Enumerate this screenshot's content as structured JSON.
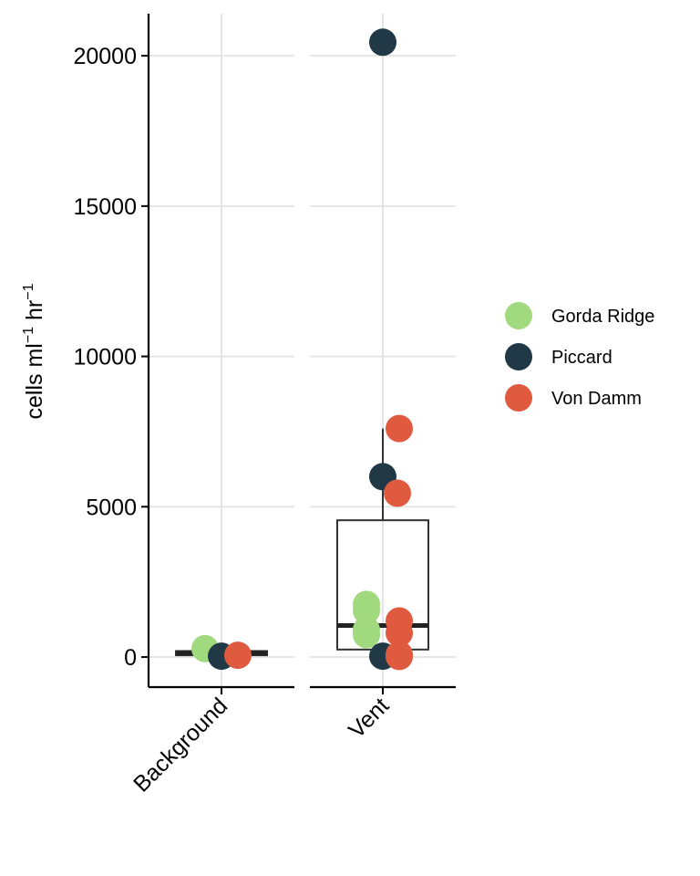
{
  "chart_data": {
    "type": "scatter",
    "subtype": "box-with-jittered-points",
    "title": "",
    "xlabel": "",
    "ylabel": {
      "base": "cells ml",
      "sup1": "−1",
      "mid": " hr",
      "sup2": "−1"
    },
    "categories": [
      "Background",
      "Vent"
    ],
    "ylim": [
      -1000,
      21400
    ],
    "yticks": [
      0,
      5000,
      10000,
      15000,
      20000
    ],
    "ytick_labels": [
      "0",
      "5000",
      "10000",
      "15000",
      "20000"
    ],
    "grid": true,
    "legend_position": "right",
    "series": [
      {
        "name": "Gorda Ridge",
        "color": "#a1d97f",
        "points": [
          {
            "category": "Background",
            "y": 280
          },
          {
            "category": "Vent",
            "y": 1750
          },
          {
            "category": "Vent",
            "y": 1550
          },
          {
            "category": "Vent",
            "y": 900
          },
          {
            "category": "Vent",
            "y": 750
          }
        ]
      },
      {
        "name": "Piccard",
        "color": "#213846",
        "points": [
          {
            "category": "Background",
            "y": 30
          },
          {
            "category": "Vent",
            "y": 20450
          },
          {
            "category": "Vent",
            "y": 6000
          },
          {
            "category": "Vent",
            "y": 30
          }
        ]
      },
      {
        "name": "Von Damm",
        "color": "#e05a40",
        "points": [
          {
            "category": "Background",
            "y": 60
          },
          {
            "category": "Vent",
            "y": 7600
          },
          {
            "category": "Vent",
            "y": 5450
          },
          {
            "category": "Vent",
            "y": 1200
          },
          {
            "category": "Vent",
            "y": 800
          },
          {
            "category": "Vent",
            "y": 80
          },
          {
            "category": "Vent",
            "y": 20
          }
        ]
      }
    ],
    "boxes": [
      {
        "category": "Background",
        "q1": 60,
        "median": 130,
        "q3": 200,
        "whisker_low": 30,
        "whisker_high": 280
      },
      {
        "category": "Vent",
        "q1": 250,
        "median": 1050,
        "q3": 4550,
        "whisker_low": 20,
        "whisker_high": 7600
      }
    ]
  }
}
